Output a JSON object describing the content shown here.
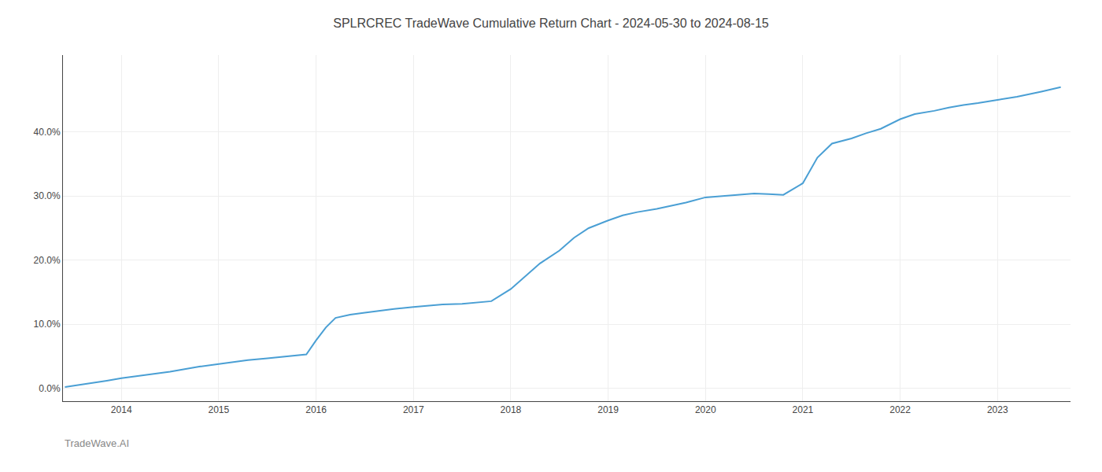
{
  "chart_data": {
    "type": "line",
    "title": "SPLRCREC TradeWave Cumulative Return Chart - 2024-05-30 to 2024-08-15",
    "annotations": [
      "TradeWave.AI"
    ],
    "color": "#4a9fd4",
    "grid": true,
    "x": [
      2013.42,
      2013.55,
      2013.7,
      2013.85,
      2014.0,
      2014.15,
      2014.3,
      2014.5,
      2014.65,
      2014.8,
      2015.0,
      2015.15,
      2015.3,
      2015.5,
      2015.65,
      2015.8,
      2015.9,
      2016.0,
      2016.1,
      2016.2,
      2016.35,
      2016.5,
      2016.65,
      2016.8,
      2017.0,
      2017.15,
      2017.3,
      2017.5,
      2017.65,
      2017.8,
      2018.0,
      2018.15,
      2018.3,
      2018.5,
      2018.65,
      2018.8,
      2019.0,
      2019.15,
      2019.3,
      2019.5,
      2019.65,
      2019.8,
      2020.0,
      2020.15,
      2020.3,
      2020.5,
      2020.65,
      2020.8,
      2021.0,
      2021.15,
      2021.3,
      2021.5,
      2021.65,
      2021.8,
      2022.0,
      2022.15,
      2022.35,
      2022.5,
      2022.65,
      2022.8,
      2023.0,
      2023.2,
      2023.45,
      2023.65
    ],
    "values": [
      0.2,
      0.5,
      0.8,
      1.2,
      1.6,
      1.9,
      2.2,
      2.6,
      3.0,
      3.4,
      3.8,
      4.1,
      4.4,
      4.7,
      4.9,
      5.1,
      5.3,
      7.5,
      9.5,
      11.0,
      11.5,
      11.8,
      12.1,
      12.4,
      12.7,
      12.9,
      13.1,
      13.2,
      13.4,
      13.6,
      15.5,
      17.5,
      19.5,
      21.5,
      23.5,
      25.0,
      26.2,
      27.0,
      27.5,
      28.0,
      28.5,
      29.0,
      29.8,
      30.0,
      30.2,
      30.4,
      30.3,
      30.2,
      32.0,
      36.0,
      38.2,
      39.0,
      39.8,
      40.5,
      42.0,
      42.8,
      43.3,
      43.8,
      44.2,
      44.5,
      45.0,
      45.5,
      46.3,
      47.0
    ],
    "xlim": [
      2013.4,
      2023.75
    ],
    "xticks": [
      2014,
      2015,
      2016,
      2017,
      2018,
      2019,
      2020,
      2021,
      2022,
      2023
    ],
    "ylim": [
      -2,
      52
    ],
    "yticks": [
      {
        "value": 0,
        "label": "0.0%"
      },
      {
        "value": 10,
        "label": "10.0%"
      },
      {
        "value": 20,
        "label": "20.0%"
      },
      {
        "value": 30,
        "label": "30.0%"
      },
      {
        "value": 40,
        "label": "40.0%"
      }
    ]
  }
}
